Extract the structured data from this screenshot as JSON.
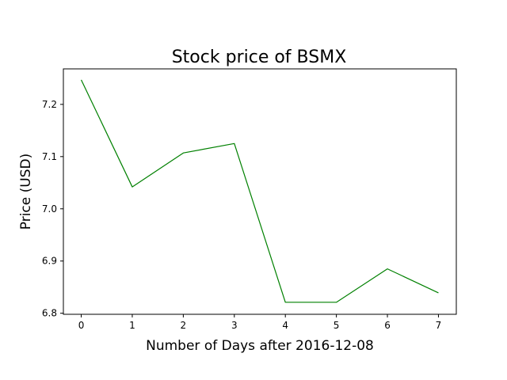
{
  "chart_data": {
    "type": "line",
    "title": "Stock price of BSMX",
    "xlabel": "Number of Days after 2016-12-08",
    "ylabel": "Price (USD)",
    "x": [
      0,
      1,
      2,
      3,
      4,
      5,
      6,
      7
    ],
    "series": [
      {
        "values": [
          7.247,
          7.042,
          7.107,
          7.125,
          6.821,
          6.821,
          6.885,
          6.839
        ],
        "color": "#008000"
      }
    ],
    "x_ticks": [
      "0",
      "1",
      "2",
      "3",
      "4",
      "5",
      "6",
      "7"
    ],
    "y_ticks": [
      "6.8",
      "6.9",
      "7.0",
      "7.1",
      "7.2"
    ],
    "xlim": [
      -0.35,
      7.35
    ],
    "ylim": [
      6.798,
      7.268
    ],
    "grid": false
  }
}
